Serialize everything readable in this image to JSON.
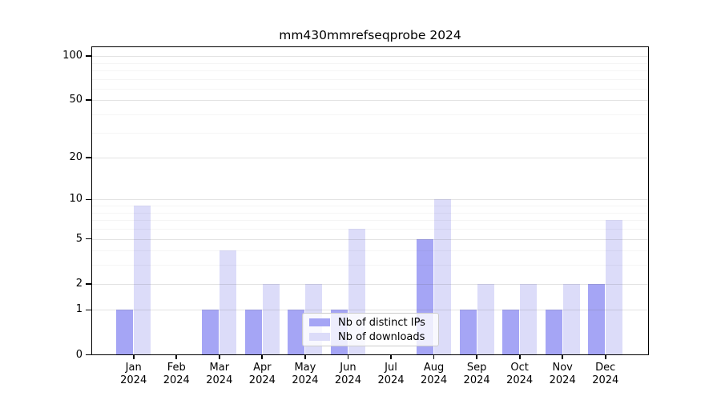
{
  "chart_data": {
    "type": "bar",
    "title": "mm430mmrefseqprobe 2024",
    "scale": "log1p",
    "year": "2024",
    "categories": [
      "Jan",
      "Feb",
      "Mar",
      "Apr",
      "May",
      "Jun",
      "Jul",
      "Aug",
      "Sep",
      "Oct",
      "Nov",
      "Dec"
    ],
    "series": [
      {
        "name": "Nb of distinct IPs",
        "color": "#a5a5f5",
        "values": [
          1,
          0,
          1,
          1,
          1,
          1,
          0,
          5,
          1,
          1,
          1,
          2
        ]
      },
      {
        "name": "Nb of downloads",
        "color": "#dcdcf9",
        "values": [
          9,
          0,
          4,
          2,
          2,
          6,
          0,
          10,
          2,
          2,
          2,
          7
        ]
      }
    ],
    "yticks": [
      0,
      1,
      2,
      5,
      10,
      20,
      50,
      100
    ],
    "minor_gridlines": [
      3,
      4,
      6,
      7,
      8,
      9,
      30,
      40,
      60,
      70,
      80,
      90
    ],
    "ylim": [
      0,
      116
    ],
    "grid": true,
    "legend_position": "lower center",
    "axis_color": "#000000",
    "background_color": "#ffffff"
  }
}
